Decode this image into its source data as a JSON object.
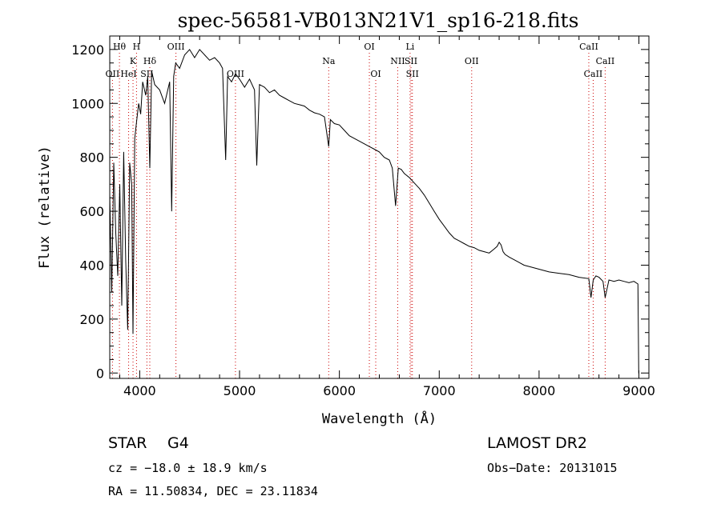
{
  "chart_data": {
    "type": "line",
    "title": "spec-56581-VB013N21V1_sp16-218.fits",
    "xlabel": "Wavelength (Å)",
    "ylabel": "Flux (relative)",
    "xlim": [
      3700,
      9100
    ],
    "ylim": [
      -20,
      1250
    ],
    "xticks": [
      4000,
      5000,
      6000,
      7000,
      8000,
      9000
    ],
    "xtick_labels": [
      "4000",
      "5000",
      "6000",
      "7000",
      "8000",
      "9000"
    ],
    "yticks": [
      0,
      200,
      400,
      600,
      800,
      1000,
      1200
    ],
    "ytick_labels": [
      "0",
      "200",
      "400",
      "600",
      "800",
      "1000",
      "1200"
    ],
    "grid": false,
    "series": [
      {
        "line_color": "#000000",
        "x": [
          3700,
          3720,
          3740,
          3760,
          3780,
          3800,
          3820,
          3840,
          3860,
          3880,
          3900,
          3920,
          3933,
          3950,
          3968,
          3990,
          4010,
          4030,
          4060,
          4080,
          4101,
          4120,
          4150,
          4200,
          4250,
          4300,
          4320,
          4340,
          4360,
          4400,
          4450,
          4500,
          4550,
          4600,
          4650,
          4700,
          4750,
          4800,
          4830,
          4861,
          4880,
          4920,
          4960,
          5000,
          5050,
          5100,
          5150,
          5172,
          5200,
          5250,
          5300,
          5350,
          5400,
          5450,
          5500,
          5550,
          5600,
          5650,
          5700,
          5750,
          5800,
          5850,
          5893,
          5910,
          5950,
          6000,
          6050,
          6100,
          6150,
          6200,
          6250,
          6300,
          6350,
          6400,
          6450,
          6500,
          6530,
          6563,
          6590,
          6620,
          6650,
          6700,
          6750,
          6800,
          6850,
          6900,
          6950,
          7000,
          7050,
          7100,
          7150,
          7200,
          7250,
          7300,
          7350,
          7400,
          7450,
          7500,
          7550,
          7580,
          7600,
          7620,
          7640,
          7660,
          7700,
          7750,
          7800,
          7850,
          7900,
          8000,
          8100,
          8200,
          8300,
          8400,
          8498,
          8520,
          8542,
          8570,
          8600,
          8640,
          8662,
          8700,
          8750,
          8800,
          8850,
          8900,
          8950,
          8990,
          8998,
          9000
        ],
        "y": [
          660,
          300,
          780,
          520,
          360,
          700,
          250,
          820,
          420,
          160,
          780,
          700,
          145,
          870,
          930,
          1000,
          960,
          1080,
          1030,
          1100,
          760,
          1120,
          1070,
          1050,
          1000,
          1080,
          600,
          1100,
          1150,
          1130,
          1180,
          1200,
          1170,
          1200,
          1180,
          1160,
          1170,
          1150,
          1130,
          790,
          1100,
          1080,
          1110,
          1090,
          1060,
          1090,
          1050,
          770,
          1070,
          1060,
          1040,
          1050,
          1030,
          1020,
          1010,
          1000,
          995,
          990,
          975,
          965,
          960,
          950,
          840,
          940,
          925,
          920,
          900,
          880,
          870,
          860,
          850,
          840,
          830,
          820,
          800,
          790,
          760,
          620,
          760,
          755,
          740,
          725,
          705,
          685,
          660,
          630,
          600,
          570,
          545,
          520,
          500,
          490,
          480,
          470,
          465,
          455,
          450,
          445,
          460,
          470,
          485,
          475,
          450,
          440,
          430,
          420,
          410,
          400,
          395,
          385,
          375,
          370,
          365,
          355,
          350,
          280,
          345,
          360,
          355,
          340,
          280,
          345,
          340,
          345,
          340,
          335,
          340,
          330,
          0,
          0
        ]
      }
    ],
    "line_markers": [
      {
        "label": "Hθ",
        "x": 3797,
        "row": 1
      },
      {
        "label": "H",
        "x": 3968,
        "row": 1
      },
      {
        "label": "OIII",
        "x": 4363,
        "row": 1
      },
      {
        "label": "OI",
        "x": 6300,
        "row": 1
      },
      {
        "label": "Li",
        "x": 6708,
        "row": 1
      },
      {
        "label": "CaII",
        "x": 8498,
        "row": 1
      },
      {
        "label": "K",
        "x": 3933,
        "row": 2
      },
      {
        "label": "Hδ",
        "x": 4101,
        "row": 2
      },
      {
        "label": "Na",
        "x": 5893,
        "row": 2
      },
      {
        "label": "NII",
        "x": 6584,
        "row": 2
      },
      {
        "label": "SII",
        "x": 6717,
        "row": 2
      },
      {
        "label": "OII",
        "x": 7325,
        "row": 2
      },
      {
        "label": "CaII",
        "x": 8662,
        "row": 2
      },
      {
        "label": "OII",
        "x": 3727,
        "row": 3
      },
      {
        "label": "HeI",
        "x": 3889,
        "row": 3
      },
      {
        "label": "SII",
        "x": 4072,
        "row": 3
      },
      {
        "label": "OIII",
        "x": 4959,
        "row": 3
      },
      {
        "label": "OI",
        "x": 6364,
        "row": 3
      },
      {
        "label": "SII",
        "x": 6731,
        "row": 3
      },
      {
        "label": "CaII",
        "x": 8542,
        "row": 3
      }
    ],
    "marker_color": "#cc0000"
  },
  "info": {
    "object_type": "STAR",
    "subclass": "G4",
    "survey": "LAMOST DR2",
    "redshift": "cz = −18.0 ± 18.9 km/s",
    "obs_date": "Obs−Date: 20131015",
    "coords": "RA =  11.50834, DEC =  23.11834"
  }
}
